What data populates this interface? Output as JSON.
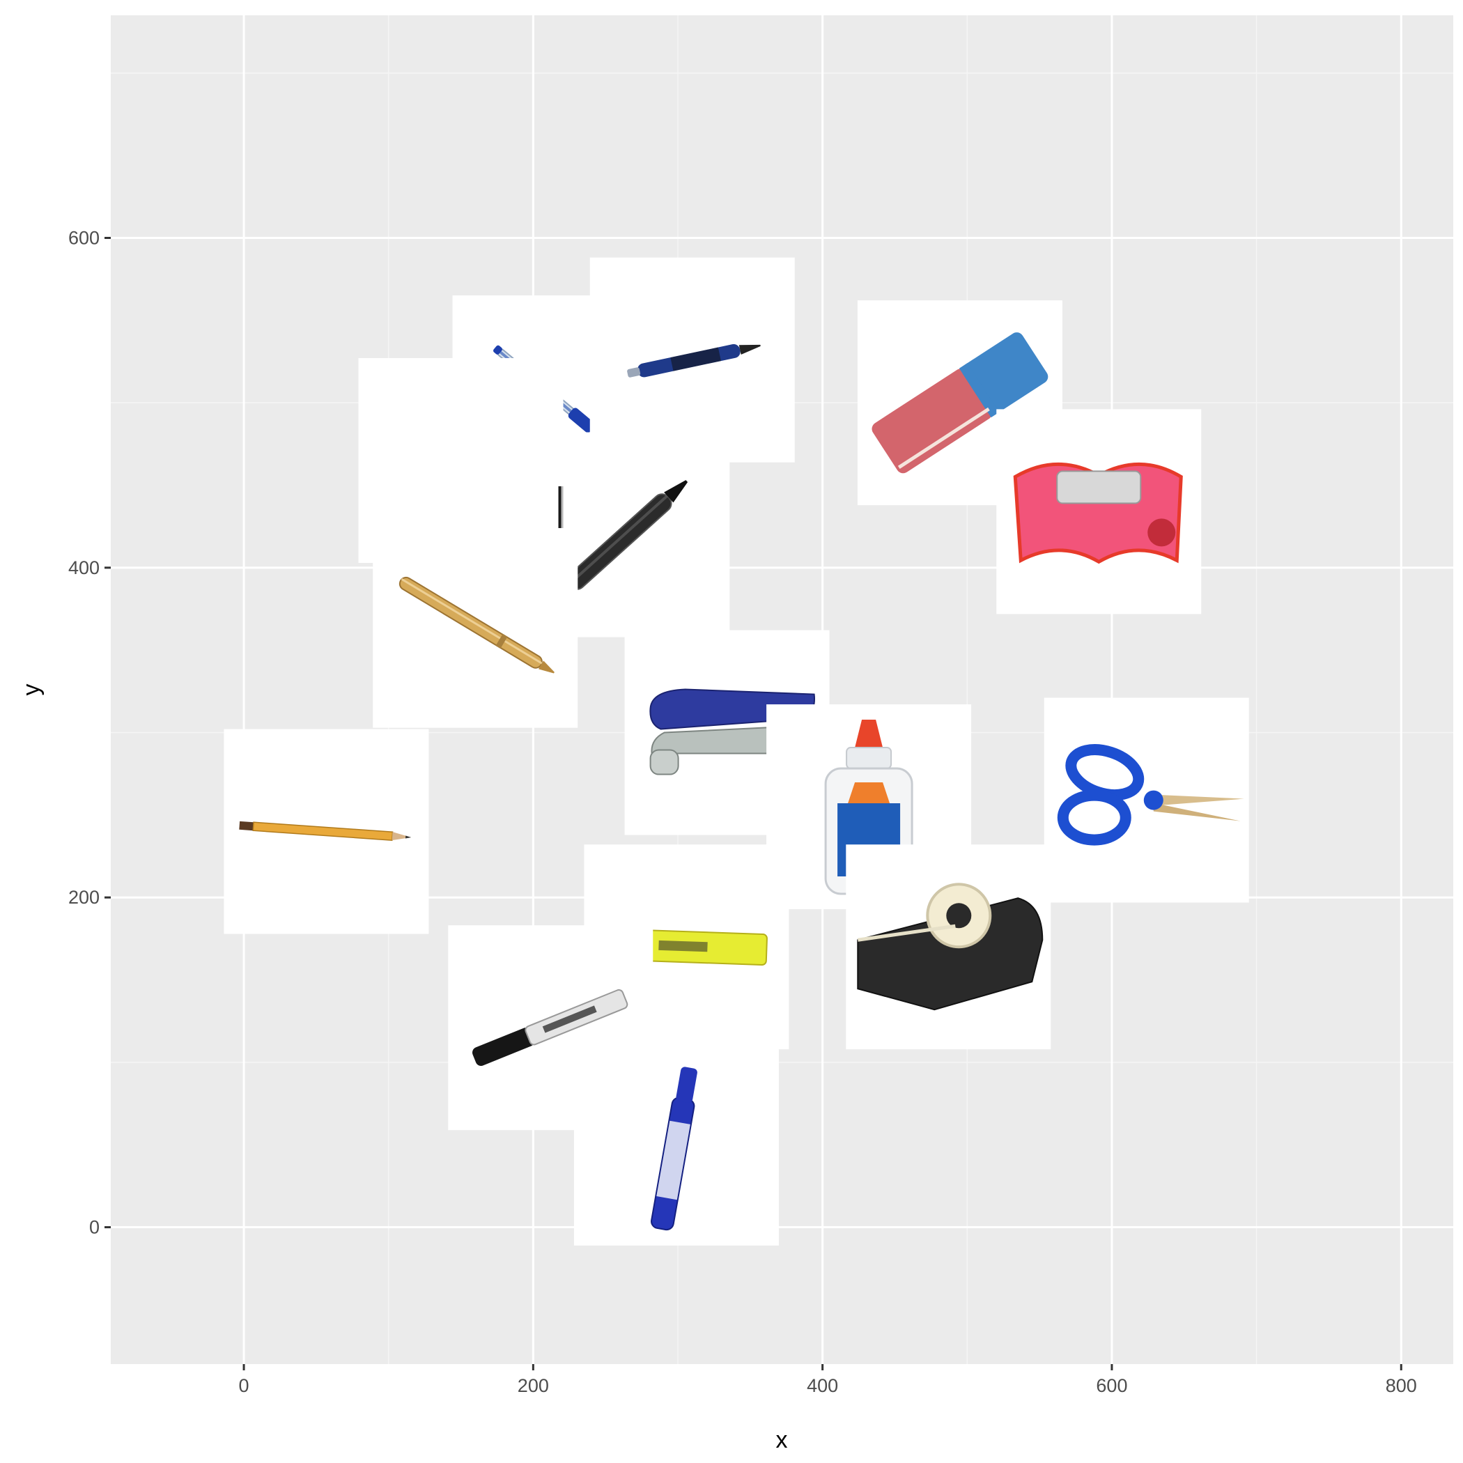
{
  "chart_data": {
    "type": "scatter",
    "title": "",
    "xlabel": "x",
    "ylabel": "y",
    "xlim": [
      -92,
      836
    ],
    "ylim": [
      -83,
      735
    ],
    "x_ticks": [
      0,
      200,
      400,
      600,
      800
    ],
    "y_ticks": [
      0,
      200,
      400,
      600
    ],
    "x_tick_labels": [
      "0",
      "200",
      "400",
      "600",
      "800"
    ],
    "y_tick_labels": [
      "0",
      "200",
      "400",
      "600"
    ],
    "grid": true,
    "legend": "none",
    "marker": "image",
    "points": [
      {
        "item": "pencil-icon",
        "x": 57,
        "y": 240
      },
      {
        "item": "ballpoint-pen-clear-icon",
        "x": 215,
        "y": 503
      },
      {
        "item": "click-pen-blue-icon",
        "x": 310,
        "y": 526
      },
      {
        "item": "pen-black-icon",
        "x": 265,
        "y": 420
      },
      {
        "item": "pen-gold-icon",
        "x": 160,
        "y": 365
      },
      {
        "item": "pen-tip-icon",
        "x": 150,
        "y": 465
      },
      {
        "item": "eraser-icon",
        "x": 495,
        "y": 500
      },
      {
        "item": "pencil-sharpener-icon",
        "x": 591,
        "y": 434
      },
      {
        "item": "stapler-icon",
        "x": 334,
        "y": 300
      },
      {
        "item": "glue-bottle-icon",
        "x": 432,
        "y": 255
      },
      {
        "item": "scissors-icon",
        "x": 624,
        "y": 259
      },
      {
        "item": "tape-dispenser-icon",
        "x": 487,
        "y": 170
      },
      {
        "item": "highlighter-icon",
        "x": 306,
        "y": 170
      },
      {
        "item": "permanent-marker-icon",
        "x": 212,
        "y": 121
      },
      {
        "item": "whiteboard-marker-icon",
        "x": 299,
        "y": 51
      }
    ]
  },
  "colors": {
    "panel_background": "#ebebeb",
    "grid_major": "#ffffff",
    "grid_minor": "#f5f5f5",
    "axis_text": "#4d4d4d",
    "axis_title": "#000000"
  }
}
